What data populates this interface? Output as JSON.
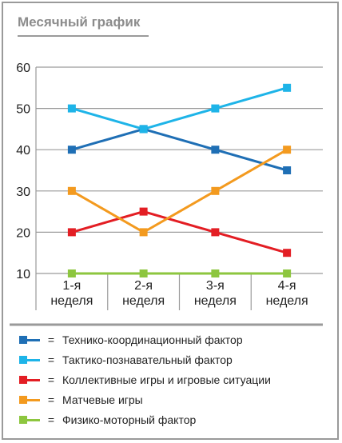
{
  "chart_data": {
    "type": "line",
    "title": "Месячный график",
    "categories": [
      [
        "1-я",
        "неделя"
      ],
      [
        "2-я",
        "неделя"
      ],
      [
        "3-я",
        "неделя"
      ],
      [
        "4-я",
        "неделя"
      ]
    ],
    "ylim": [
      10,
      60
    ],
    "yticks": [
      10,
      20,
      30,
      40,
      50,
      60
    ],
    "grid": true,
    "legend_position": "bottom",
    "legend_separator": "=",
    "series": [
      {
        "name": "Технико-координационный фактор",
        "color": "#1f6fb5",
        "values": [
          40,
          45,
          40,
          35
        ]
      },
      {
        "name": "Тактико-познавательный фактор",
        "color": "#1eb4e8",
        "values": [
          50,
          45,
          50,
          55
        ]
      },
      {
        "name": "Коллективные игры и игровые ситуации",
        "color": "#e31e24",
        "values": [
          20,
          25,
          20,
          15
        ]
      },
      {
        "name": "Матчевые игры",
        "color": "#f39a1f",
        "values": [
          30,
          20,
          30,
          40
        ]
      },
      {
        "name": "Физико-моторный фактор",
        "color": "#8dc63f",
        "values": [
          10,
          10,
          10,
          10
        ]
      }
    ]
  }
}
